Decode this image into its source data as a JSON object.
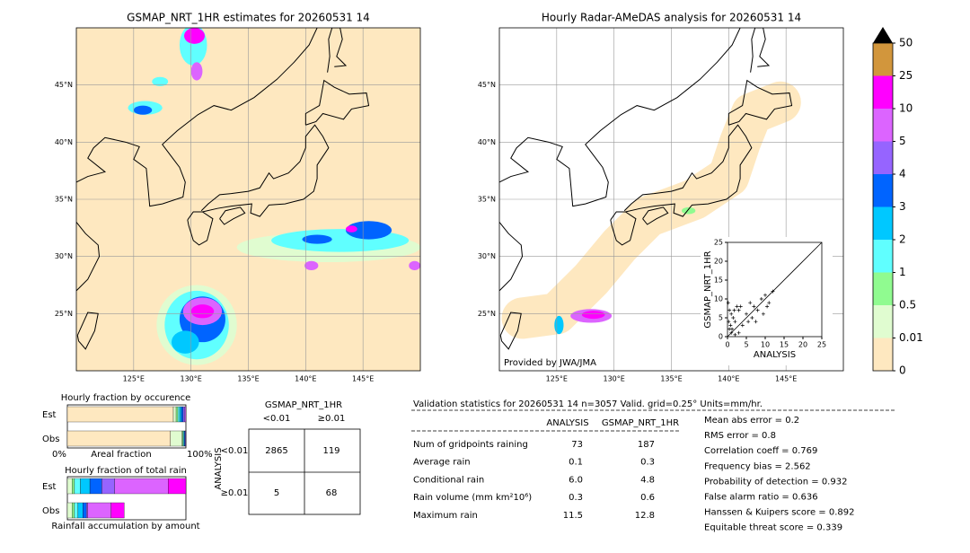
{
  "chart_data": {
    "type": "map_verification",
    "left_map": {
      "title": "GSMAP_NRT_1HR estimates for 20260531 14"
    },
    "right_map": {
      "title": "Hourly Radar-AMeDAS analysis for 20260531 14",
      "credit": "Provided by JWA/JMA"
    },
    "xlim": [
      120,
      150
    ],
    "ylim": [
      20,
      50
    ],
    "xticks": [
      {
        "value": 125,
        "label": "125°E"
      },
      {
        "value": 130,
        "label": "130°E"
      },
      {
        "value": 135,
        "label": "135°E"
      },
      {
        "value": 140,
        "label": "140°E"
      },
      {
        "value": 145,
        "label": "145°E"
      }
    ],
    "yticks": [
      {
        "value": 25,
        "label": "25°N"
      },
      {
        "value": 30,
        "label": "30°N"
      },
      {
        "value": 35,
        "label": "35°N"
      },
      {
        "value": 40,
        "label": "40°N"
      },
      {
        "value": 45,
        "label": "45°N"
      }
    ],
    "colorbar": {
      "ticks": [
        "0",
        "0.01",
        "0.5",
        "1",
        "2",
        "3",
        "4",
        "5",
        "10",
        "25",
        "50"
      ],
      "colors": [
        "#fee8c0",
        "#e0fcd0",
        "#90fb90",
        "#60ffff",
        "#00c8ff",
        "#0064ff",
        "#9664ff",
        "#dc64ff",
        "#ff00ff",
        "#d2963c"
      ]
    },
    "scatter": {
      "xlabel": "ANALYSIS",
      "ylabel": "GSMAP_NRT_1HR",
      "xlim": [
        0,
        25
      ],
      "ylim": [
        0,
        25
      ],
      "xticks": [
        0,
        5,
        10,
        15,
        20,
        25
      ],
      "yticks": [
        0,
        5,
        10,
        15,
        20,
        25
      ],
      "x": [
        0.5,
        1,
        1.5,
        2,
        2.5,
        3,
        0.5,
        1,
        4,
        5,
        6,
        7,
        8,
        9,
        10,
        11,
        12,
        2,
        3,
        0.3,
        0.8,
        1.2,
        5.5,
        9.5,
        6.5,
        3.5,
        0.2,
        1.8,
        7.5,
        10.5
      ],
      "y": [
        7,
        6,
        5,
        4,
        8,
        7,
        2,
        1,
        3,
        6,
        9,
        8,
        7,
        10,
        11,
        9,
        12,
        0.5,
        1,
        4,
        3,
        2,
        4,
        6,
        5,
        8,
        9,
        7,
        4,
        8
      ]
    },
    "occurrence": {
      "title": "Hourly fraction by occurence",
      "rows": [
        "Est",
        "Obs"
      ],
      "xlabel": "Areal fraction",
      "left": "0%",
      "right": "100%",
      "est": [
        89.4,
        2.3,
        1.5,
        1.5,
        1.5,
        1.5,
        1.5,
        0.8
      ],
      "obs": [
        87,
        9.8,
        0.8,
        0.6,
        0.6,
        0.6,
        0.6
      ]
    },
    "total": {
      "title": "Hourly fraction of total rain",
      "rows": [
        "Est",
        "Obs"
      ],
      "footer": "Rainfall accumulation by amount",
      "est": [
        0,
        4,
        2,
        5,
        8,
        10,
        11,
        45,
        15
      ],
      "obs": [
        0,
        4,
        2,
        3,
        4,
        3,
        1,
        20,
        11
      ]
    },
    "contingency": {
      "title": "GSMAP_NRT_1HR",
      "columns": [
        "<0.01",
        "≥0.01"
      ],
      "axis": "ANALYSIS",
      "rows": [
        "<0.01",
        "≥0.01"
      ],
      "cells": [
        [
          "2865",
          "119"
        ],
        [
          "5",
          "68"
        ]
      ]
    },
    "validation": {
      "header": "Validation statistics for 20260531 14  n=3057 Valid. grid=0.25° Units=mm/hr.",
      "columns": [
        "ANALYSIS",
        "GSMAP_NRT_1HR"
      ],
      "rows": [
        {
          "label": "Num of gridpoints raining",
          "values": [
            "73",
            "187"
          ]
        },
        {
          "label": "Average rain",
          "values": [
            "0.1",
            "0.3"
          ]
        },
        {
          "label": "Conditional rain",
          "values": [
            "6.0",
            "4.8"
          ]
        },
        {
          "label": "Rain volume (mm km²10⁶)",
          "values": [
            "0.3",
            "0.6"
          ]
        },
        {
          "label": "Maximum rain",
          "values": [
            "11.5",
            "12.8"
          ]
        }
      ],
      "scores": [
        "Mean abs error =    0.2",
        "RMS error =    0.8",
        "Correlation coeff =  0.769",
        "Frequency bias =  2.562",
        "Probability of detection =  0.932",
        "False alarm ratio =  0.636",
        "Hanssen & Kuipers score =  0.892",
        "Equitable threat score =  0.339"
      ]
    }
  }
}
